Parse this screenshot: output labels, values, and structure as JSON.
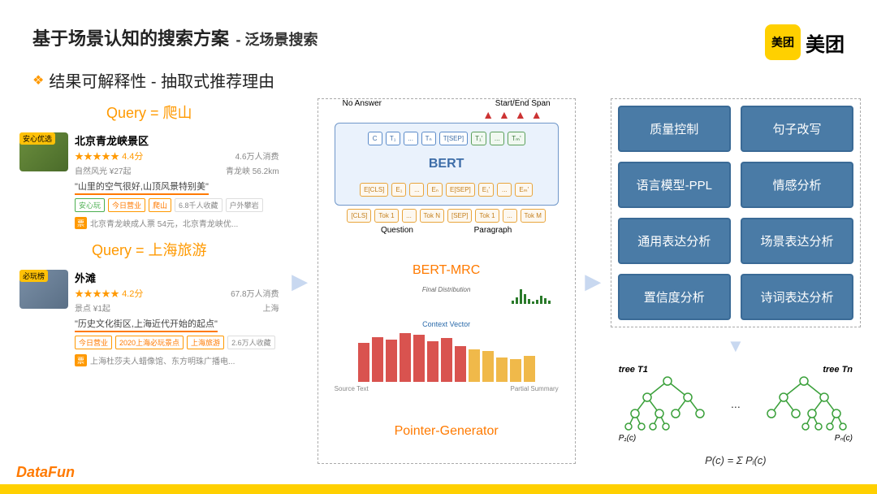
{
  "header": {
    "title_main": "基于场景认知的搜索方案",
    "title_sub": "- 泛场景搜索",
    "logo_box": "美团",
    "logo_text": "美团"
  },
  "subtitle": {
    "bullet": "❖",
    "text": "结果可解释性 - 抽取式推荐理由"
  },
  "query1": {
    "label": "Query = 爬山",
    "title": "北京青龙峡景区",
    "stars": "★★★★★",
    "rating": "4.4分",
    "consume": "4.6万人消费",
    "price": "自然风光 ¥27起",
    "dist": "青龙峡 56.2km",
    "highlight": "\"山里的空气很好,山顶风景特别美\"",
    "tags": [
      "安心玩",
      "今日营业",
      "爬山",
      "6.8千人收藏",
      "户外攀岩"
    ],
    "ticket": "北京青龙峡成人票 54元，北京青龙峡优...",
    "badge": "安心优选"
  },
  "query2": {
    "label": "Query = 上海旅游",
    "title": "外滩",
    "stars": "★★★★★",
    "rating": "4.2分",
    "consume": "67.8万人消费",
    "price": "景点 ¥1起",
    "dist": "上海",
    "highlight": "\"历史文化街区,上海近代开始的起点\"",
    "tags": [
      "今日营业",
      "2020上海必玩景点",
      "上海旅游",
      "2.6万人收藏"
    ],
    "ticket": "上海杜莎夫人蜡像馆、东方明珠广播电...",
    "badge": "必玩榜"
  },
  "bert": {
    "no_answer": "No Answer",
    "start_end": "Start/End Span",
    "label": "BERT",
    "name": "BERT-MRC",
    "top_tokens": [
      "C",
      "T₁",
      "...",
      "Tₙ",
      "T[SEP]",
      "T₁'",
      "...",
      "Tₘ'"
    ],
    "emb_tokens": [
      "E[CLS]",
      "E₁",
      "...",
      "Eₙ",
      "E[SEP]",
      "E₁'",
      "...",
      "Eₘ'"
    ],
    "input_tokens": [
      "[CLS]",
      "Tok 1",
      "...",
      "Tok N",
      "[SEP]",
      "Tok 1",
      "...",
      "Tok M"
    ],
    "q_label": "Question",
    "p_label": "Paragraph"
  },
  "pg": {
    "name": "Pointer-Generator",
    "final_dist": "Final Distribution",
    "context": "Context Vector",
    "source": "Source Text",
    "partial": "Partial Summary",
    "bars": [
      48,
      55,
      52,
      60,
      58,
      50,
      54,
      44,
      40,
      38,
      30,
      28,
      32
    ],
    "bar_colors": [
      "#d9534f",
      "#d9534f",
      "#d9534f",
      "#d9534f",
      "#d9534f",
      "#d9534f",
      "#d9534f",
      "#d9534f",
      "#f0b94a",
      "#f0b94a",
      "#f0b94a",
      "#f0b94a",
      "#f0b94a"
    ],
    "dist_bars": [
      4,
      8,
      18,
      12,
      6,
      3,
      5,
      10,
      7,
      4
    ]
  },
  "analysis": {
    "boxes": [
      "质量控制",
      "句子改写",
      "语言模型-PPL",
      "情感分析",
      "通用表达分析",
      "场景表达分析",
      "置信度分析",
      "诗词表达分析"
    ]
  },
  "trees": {
    "t1": "tree T1",
    "tn": "tree Tn",
    "p1": "P₁(c)",
    "pn": "Pₙ(c)",
    "dots": "...",
    "formula": "P(c) = Σ Pᵢ(c)"
  },
  "footer": {
    "datafun": "DataFun"
  },
  "colors": {
    "accent": "#ff9900",
    "box_bg": "#4a7ba6",
    "yellow": "#ffd000",
    "arrow": "#c8d8f0"
  }
}
